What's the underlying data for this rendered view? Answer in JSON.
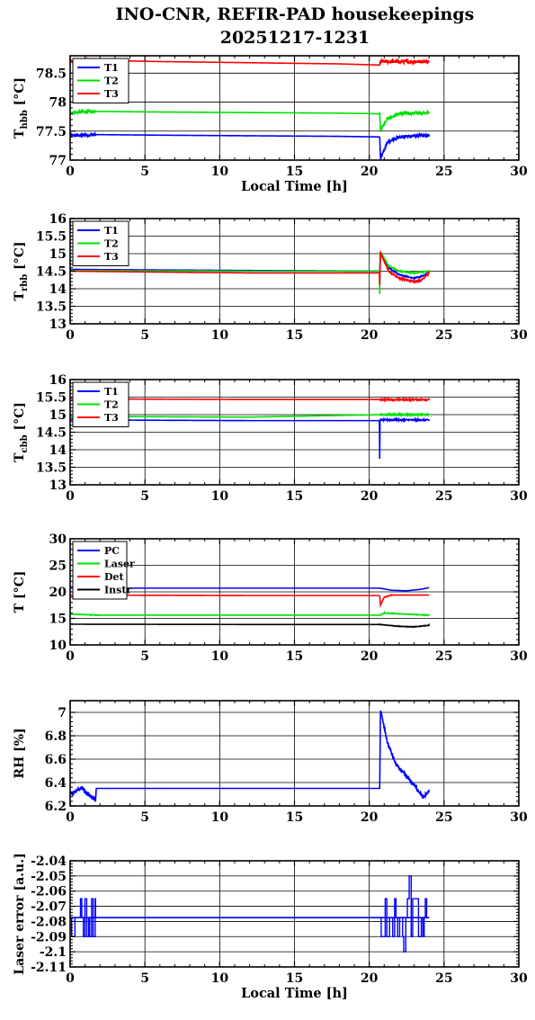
{
  "title_line1": "INO-CNR, REFIR-PAD housekeepings",
  "title_line2": "20251217-1231",
  "colors": {
    "blue": "#0000ff",
    "green": "#00e000",
    "red": "#ff0000",
    "black": "#000000"
  },
  "chart_data": [
    {
      "type": "line",
      "ylabel": "T",
      "ylabel_sub": "hbb",
      "ylabel_unit": "[°C]",
      "xlabel": "Local Time [h]",
      "xlim": [
        0,
        30
      ],
      "ylim": [
        77,
        78.8
      ],
      "yticks": [
        77,
        77.5,
        78,
        78.5
      ],
      "ytick_labels": [
        "77",
        "77.5",
        "78",
        "78.5"
      ],
      "xticks": [
        0,
        5,
        10,
        15,
        20,
        25,
        30
      ],
      "xtick_labels": [
        "0",
        "5",
        "10",
        "15",
        "20",
        "25",
        "30"
      ],
      "grid": true,
      "legend_position": "top-left",
      "series": [
        {
          "name": "T1",
          "color": "#0000ff",
          "x": [
            0,
            1.7,
            6,
            12,
            18,
            20.7,
            20.75,
            21.2,
            22,
            23,
            24
          ],
          "y": [
            77.42,
            77.44,
            77.43,
            77.42,
            77.41,
            77.4,
            77.02,
            77.3,
            77.4,
            77.42,
            77.42
          ],
          "noise": 0.025,
          "noise_ranges": [
            [
              0,
              1.7
            ],
            [
              20.7,
              24
            ]
          ]
        },
        {
          "name": "T2",
          "color": "#00e000",
          "x": [
            0,
            1.7,
            6,
            12,
            18,
            20.7,
            20.75,
            21.2,
            22,
            23,
            24
          ],
          "y": [
            77.82,
            77.84,
            77.83,
            77.82,
            77.81,
            77.8,
            77.52,
            77.72,
            77.8,
            77.81,
            77.82
          ],
          "noise": 0.025,
          "noise_ranges": [
            [
              0,
              1.7
            ],
            [
              20.7,
              24
            ]
          ]
        },
        {
          "name": "T3",
          "color": "#ff0000",
          "x": [
            0,
            1.7,
            6,
            12,
            18,
            20.7,
            20.75,
            24
          ],
          "y": [
            78.7,
            78.72,
            78.7,
            78.68,
            78.66,
            78.64,
            78.7,
            78.7
          ],
          "noise": 0.03,
          "noise_ranges": [
            [
              0,
              1.7
            ],
            [
              20.7,
              24
            ]
          ]
        }
      ]
    },
    {
      "type": "line",
      "ylabel": "T",
      "ylabel_sub": "rbb",
      "ylabel_unit": "[°C]",
      "xlabel": "",
      "xlim": [
        0,
        30
      ],
      "ylim": [
        13,
        16
      ],
      "yticks": [
        13,
        13.5,
        14,
        14.5,
        15,
        15.5,
        16
      ],
      "ytick_labels": [
        "13",
        "13.5",
        "14",
        "14.5",
        "15",
        "15.5",
        "16"
      ],
      "xticks": [
        0,
        5,
        10,
        15,
        20,
        25,
        30
      ],
      "xtick_labels": [
        "0",
        "5",
        "10",
        "15",
        "20",
        "25",
        "30"
      ],
      "grid": true,
      "legend_position": "top-left",
      "series": [
        {
          "name": "T1",
          "color": "#0000ff",
          "x": [
            0,
            12,
            20.7,
            20.75,
            21.3,
            22,
            23,
            23.5,
            24
          ],
          "y": [
            14.55,
            14.52,
            14.5,
            15.0,
            14.6,
            14.4,
            14.3,
            14.35,
            14.45
          ],
          "noise": 0.015,
          "noise_ranges": [
            [
              20.7,
              24
            ]
          ]
        },
        {
          "name": "T2",
          "color": "#00e000",
          "x": [
            0,
            12,
            20.68,
            20.7,
            20.72,
            20.75,
            21.3,
            22,
            23,
            24
          ],
          "y": [
            14.52,
            14.5,
            14.5,
            13.85,
            14.5,
            15.05,
            14.65,
            14.5,
            14.45,
            14.5
          ],
          "noise": 0.015,
          "noise_ranges": [
            [
              20.7,
              24
            ]
          ]
        },
        {
          "name": "T3",
          "color": "#ff0000",
          "x": [
            0,
            12,
            20.68,
            20.7,
            20.72,
            20.75,
            21.3,
            22,
            23,
            23.5,
            24
          ],
          "y": [
            14.5,
            14.45,
            14.45,
            14.1,
            14.5,
            15.02,
            14.5,
            14.3,
            14.2,
            14.25,
            14.45
          ],
          "noise": 0.02,
          "noise_ranges": [
            [
              20.7,
              24
            ]
          ]
        }
      ]
    },
    {
      "type": "line",
      "ylabel": "T",
      "ylabel_sub": "cbb",
      "ylabel_unit": "[°C]",
      "xlabel": "",
      "xlim": [
        0,
        30
      ],
      "ylim": [
        13,
        16
      ],
      "yticks": [
        13,
        13.5,
        14,
        14.5,
        15,
        15.5,
        16
      ],
      "ytick_labels": [
        "13",
        "13.5",
        "14",
        "14.5",
        "15",
        "15.5",
        "16"
      ],
      "xticks": [
        0,
        5,
        10,
        15,
        20,
        25,
        30
      ],
      "xtick_labels": [
        "0",
        "5",
        "10",
        "15",
        "20",
        "25",
        "30"
      ],
      "grid": true,
      "legend_position": "top-left",
      "series": [
        {
          "name": "T1",
          "color": "#0000ff",
          "x": [
            0,
            12,
            20.68,
            20.7,
            20.72,
            20.75,
            24
          ],
          "y": [
            14.85,
            14.83,
            14.83,
            13.75,
            14.83,
            14.85,
            14.85
          ],
          "noise": 0.02,
          "noise_ranges": [
            [
              20.7,
              24
            ]
          ]
        },
        {
          "name": "T2",
          "color": "#00e000",
          "x": [
            0,
            12,
            20.75,
            24
          ],
          "y": [
            14.95,
            14.93,
            15.0,
            15.0
          ],
          "noise": 0.02,
          "noise_ranges": [
            [
              20.7,
              24
            ]
          ]
        },
        {
          "name": "T3",
          "color": "#ff0000",
          "x": [
            0,
            12,
            20.75,
            24
          ],
          "y": [
            15.45,
            15.43,
            15.43,
            15.43
          ],
          "noise": 0.02,
          "noise_ranges": [
            [
              20.7,
              24
            ]
          ]
        }
      ]
    },
    {
      "type": "line",
      "ylabel": "T [°C]",
      "ylabel_sub": "",
      "ylabel_unit": "",
      "xlabel": "",
      "xlim": [
        0,
        30
      ],
      "ylim": [
        10,
        30
      ],
      "yticks": [
        10,
        15,
        20,
        25,
        30
      ],
      "ytick_labels": [
        "10",
        "15",
        "20",
        "25",
        "30"
      ],
      "xticks": [
        0,
        5,
        10,
        15,
        20,
        25,
        30
      ],
      "xtick_labels": [
        "0",
        "5",
        "10",
        "15",
        "20",
        "25",
        "30"
      ],
      "grid": true,
      "legend_position": "top-left",
      "series": [
        {
          "name": "PC",
          "color": "#0000ff",
          "x": [
            0,
            10,
            20.7,
            21.5,
            22.5,
            23.5,
            24
          ],
          "y": [
            20.7,
            20.7,
            20.7,
            20.3,
            20.2,
            20.5,
            20.8
          ],
          "noise": 0,
          "noise_ranges": []
        },
        {
          "name": "Laser",
          "color": "#00e000",
          "x": [
            0,
            2,
            20.7,
            21,
            24
          ],
          "y": [
            15.8,
            15.6,
            15.6,
            16.0,
            15.6
          ],
          "noise": 0.05,
          "noise_ranges": [
            [
              0,
              2
            ],
            [
              20.7,
              24
            ]
          ]
        },
        {
          "name": "Det",
          "color": "#ff0000",
          "x": [
            0,
            12,
            20.7,
            20.75,
            21,
            21.5,
            24
          ],
          "y": [
            19.4,
            19.3,
            19.3,
            17.5,
            19.0,
            19.4,
            19.4
          ],
          "noise": 0.05,
          "noise_ranges": [
            [
              20.7,
              21.5
            ]
          ]
        },
        {
          "name": "Instr",
          "color": "#000000",
          "x": [
            0,
            12,
            20.7,
            22,
            23,
            24
          ],
          "y": [
            13.9,
            13.85,
            13.85,
            13.5,
            13.4,
            13.7
          ],
          "noise": 0.04,
          "noise_ranges": [
            [
              20.7,
              24
            ]
          ]
        }
      ]
    },
    {
      "type": "line",
      "ylabel": "RH [%]",
      "ylabel_sub": "",
      "ylabel_unit": "",
      "xlabel": "",
      "xlim": [
        0,
        30
      ],
      "ylim": [
        6.2,
        7.1
      ],
      "yticks": [
        6.2,
        6.4,
        6.6,
        6.8,
        7.0
      ],
      "ytick_labels": [
        "6.2",
        "6.4",
        "6.6",
        "6.8",
        "7"
      ],
      "xticks": [
        0,
        5,
        10,
        15,
        20,
        25,
        30
      ],
      "xtick_labels": [
        "0",
        "5",
        "10",
        "15",
        "20",
        "25",
        "30"
      ],
      "grid": true,
      "legend_position": "none",
      "series": [
        {
          "name": "",
          "color": "#0000ff",
          "x": [
            0,
            0.5,
            0.8,
            1.0,
            1.7,
            1.75,
            20.7,
            20.75,
            21.2,
            21.8,
            22.5,
            23.2,
            23.6,
            24
          ],
          "y": [
            6.3,
            6.33,
            6.36,
            6.32,
            6.25,
            6.35,
            6.35,
            7.02,
            6.75,
            6.55,
            6.45,
            6.35,
            6.27,
            6.33
          ],
          "noise": 0.015,
          "noise_ranges": [
            [
              0,
              1.7
            ],
            [
              20.75,
              24
            ]
          ]
        }
      ]
    },
    {
      "type": "line",
      "ylabel": "Laser error [a.u.]",
      "ylabel_sub": "",
      "ylabel_unit": "",
      "xlabel": "Local Time [h]",
      "xlim": [
        0,
        30
      ],
      "ylim": [
        -2.11,
        -2.04
      ],
      "yticks": [
        -2.11,
        -2.1,
        -2.09,
        -2.08,
        -2.07,
        -2.06,
        -2.05,
        -2.04
      ],
      "ytick_labels": [
        "-2.11",
        "-2.1",
        "-2.09",
        "-2.08",
        "-2.07",
        "-2.06",
        "-2.05",
        "-2.04"
      ],
      "xticks": [
        0,
        5,
        10,
        15,
        20,
        25,
        30
      ],
      "xtick_labels": [
        "0",
        "5",
        "10",
        "15",
        "20",
        "25",
        "30"
      ],
      "grid": true,
      "legend_position": "none",
      "baseline": -2.0775,
      "series": [
        {
          "name": "",
          "color": "#0000ff",
          "x": [
            0,
            24
          ],
          "y": [
            -2.0775,
            -2.0775
          ],
          "noise": 0,
          "noise_ranges": []
        }
      ],
      "steps": {
        "color": "#0000ff",
        "ranges": [
          [
            0,
            1.7
          ],
          [
            20.7,
            24
          ]
        ],
        "levels": [
          -2.09,
          -2.0775,
          -2.065
        ],
        "spike_top": -2.05,
        "spike_bottom": -2.1
      }
    }
  ]
}
